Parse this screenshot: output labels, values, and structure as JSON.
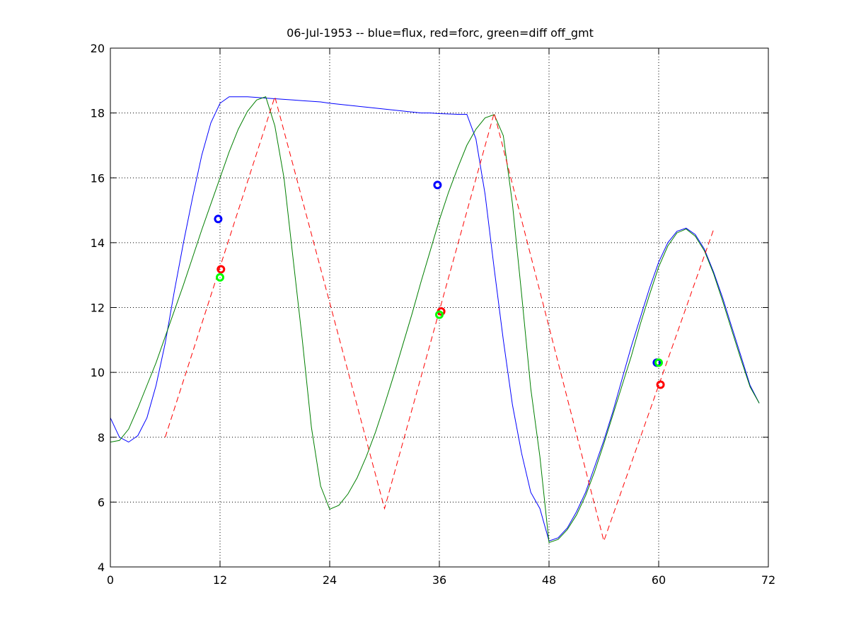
{
  "chart_data": {
    "type": "line",
    "title": "06-Jul-1953 -- blue=flux, red=forc, green=diff off_gmt",
    "xlabel": "",
    "ylabel": "",
    "xlim": [
      0,
      72
    ],
    "ylim": [
      4,
      20
    ],
    "xticks": [
      0,
      12,
      24,
      36,
      48,
      60,
      72
    ],
    "yticks": [
      4,
      6,
      8,
      10,
      12,
      14,
      16,
      18,
      20
    ],
    "grid": true,
    "colors": {
      "blue": "#0000ff",
      "green": "#007f00",
      "red": "#ff0000",
      "marker_green": "#00ff00"
    },
    "series": [
      {
        "color": "#0000ff",
        "style": "solid",
        "x": [
          0,
          1,
          2,
          3,
          4,
          5,
          6,
          7,
          8,
          9,
          10,
          11,
          12,
          13,
          14,
          15,
          16,
          17,
          18,
          19,
          20,
          21,
          22,
          23,
          24,
          25,
          26,
          27,
          28,
          29,
          30,
          31,
          32,
          33,
          34,
          35,
          36,
          37,
          38,
          39,
          40,
          41,
          42,
          43,
          44,
          45,
          46,
          47,
          48,
          49,
          50,
          51,
          52,
          53,
          54,
          55,
          56,
          57,
          58,
          59,
          60,
          61,
          62,
          63,
          64,
          65,
          66,
          67,
          68,
          69,
          70,
          71
        ],
        "y": [
          8.6,
          8.0,
          7.85,
          8.05,
          8.6,
          9.6,
          10.9,
          12.5,
          14.0,
          15.4,
          16.7,
          17.7,
          18.3,
          18.5,
          18.5,
          18.5,
          18.48,
          18.46,
          18.44,
          18.42,
          18.4,
          18.38,
          18.36,
          18.34,
          18.3,
          18.27,
          18.24,
          18.21,
          18.18,
          18.15,
          18.12,
          18.09,
          18.06,
          18.03,
          18.0,
          18.0,
          17.98,
          17.97,
          17.96,
          17.96,
          17.2,
          15.5,
          13.2,
          11.0,
          9.0,
          7.5,
          6.3,
          5.8,
          4.8,
          4.9,
          5.2,
          5.7,
          6.3,
          7.1,
          7.9,
          8.8,
          9.8,
          10.8,
          11.7,
          12.6,
          13.4,
          14.0,
          14.35,
          14.45,
          14.25,
          13.8,
          13.1,
          12.3,
          11.4,
          10.5,
          9.6,
          9.05
        ]
      },
      {
        "color": "#007f00",
        "style": "solid",
        "x": [
          0,
          1,
          2,
          3,
          4,
          5,
          6,
          7,
          8,
          9,
          10,
          11,
          12,
          13,
          14,
          15,
          16,
          17,
          18,
          19,
          20,
          21,
          22,
          23,
          24,
          25,
          26,
          27,
          28,
          29,
          30,
          31,
          32,
          33,
          34,
          35,
          36,
          37,
          38,
          39,
          40,
          41,
          42,
          43,
          44,
          45,
          46,
          47,
          48,
          49,
          50,
          51,
          52,
          53,
          54,
          55,
          56,
          57,
          58,
          59,
          60,
          61,
          62,
          63,
          64,
          65,
          66,
          67,
          68,
          69,
          70,
          71
        ],
        "y": [
          7.85,
          7.9,
          8.25,
          8.9,
          9.6,
          10.3,
          11.1,
          11.9,
          12.7,
          13.55,
          14.4,
          15.2,
          16.0,
          16.8,
          17.5,
          18.05,
          18.4,
          18.5,
          17.6,
          16.0,
          13.5,
          11.0,
          8.3,
          6.5,
          5.78,
          5.9,
          6.25,
          6.75,
          7.4,
          8.15,
          9.0,
          9.9,
          10.85,
          11.8,
          12.8,
          13.75,
          14.7,
          15.55,
          16.3,
          17.0,
          17.5,
          17.85,
          17.95,
          17.3,
          15.2,
          12.4,
          9.5,
          7.4,
          4.75,
          4.85,
          5.15,
          5.6,
          6.2,
          6.95,
          7.8,
          8.7,
          9.6,
          10.5,
          11.5,
          12.4,
          13.25,
          13.9,
          14.3,
          14.42,
          14.2,
          13.75,
          13.05,
          12.2,
          11.3,
          10.4,
          9.55,
          9.05
        ]
      },
      {
        "color": "#ff0000",
        "style": "dashed",
        "x": [
          6,
          18,
          30,
          42,
          54,
          66
        ],
        "y": [
          8.0,
          18.5,
          5.8,
          18.0,
          4.8,
          14.4
        ]
      }
    ],
    "markers": [
      {
        "color": "#0000ff",
        "x": 11.8,
        "y": 14.73
      },
      {
        "color": "#ff0000",
        "x": 12.1,
        "y": 13.18
      },
      {
        "color": "#00ff00",
        "x": 12.0,
        "y": 12.93
      },
      {
        "color": "#0000ff",
        "x": 35.8,
        "y": 15.78
      },
      {
        "color": "#ff0000",
        "x": 36.2,
        "y": 11.88
      },
      {
        "color": "#00ff00",
        "x": 36.0,
        "y": 11.78
      },
      {
        "color": "#0000ff",
        "x": 59.8,
        "y": 10.3
      },
      {
        "color": "#00ff00",
        "x": 60.0,
        "y": 10.3
      },
      {
        "color": "#ff0000",
        "x": 60.2,
        "y": 9.62
      }
    ]
  }
}
